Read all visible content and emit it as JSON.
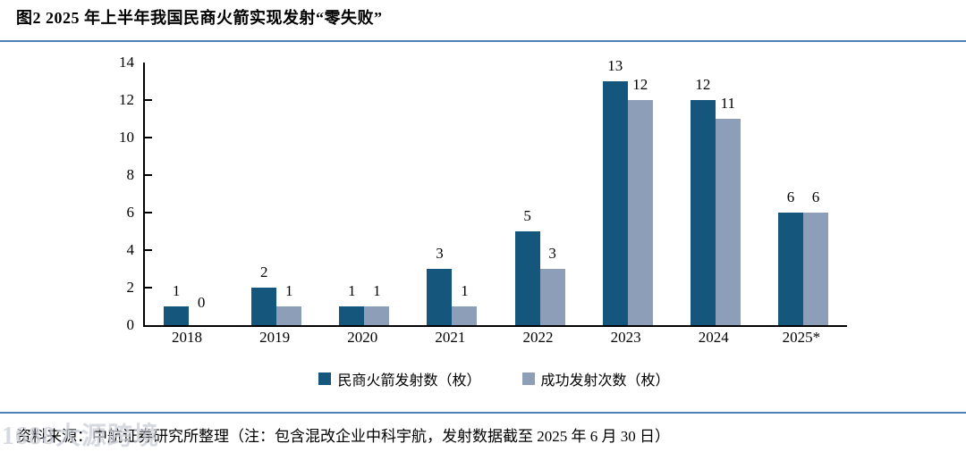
{
  "figure": {
    "title": "图2  2025 年上半年我国民商火箭实现发射“零失败”",
    "source_note": "资料来源：中航证券研究所整理（注：包含混改企业中科宇航，发射数据截至 2025 年 6 月 30 日）",
    "watermark": "1688大源跨境"
  },
  "colors": {
    "series1": "#15567d",
    "series2": "#8c9eb8",
    "divider": "#4e7fb5",
    "axis": "#000000"
  },
  "chart_data": {
    "type": "bar",
    "title": "图2 2025 年上半年我国民商火箭实现发射“零失败”",
    "categories": [
      "2018",
      "2019",
      "2020",
      "2021",
      "2022",
      "2023",
      "2024",
      "2025*"
    ],
    "series": [
      {
        "name": "民商火箭发射数（枚）",
        "color": "#15567d",
        "values": [
          1,
          2,
          1,
          3,
          5,
          13,
          12,
          6
        ]
      },
      {
        "name": "成功发射次数（枚）",
        "color": "#8c9eb8",
        "values": [
          0,
          1,
          1,
          1,
          3,
          12,
          11,
          6
        ]
      }
    ],
    "xlabel": "",
    "ylabel": "",
    "ylim": [
      0,
      14
    ],
    "ytick_step": 2,
    "grid": false,
    "legend_position": "bottom",
    "data_labels": true
  }
}
